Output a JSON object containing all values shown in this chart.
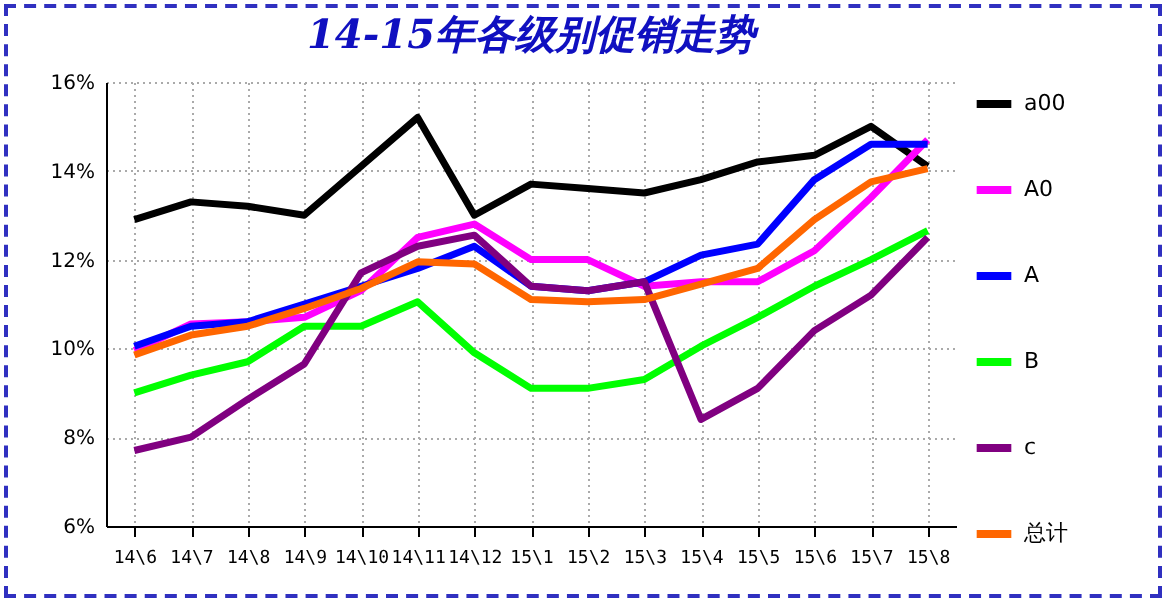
{
  "chart_data": {
    "type": "line",
    "title": "14-15年各级别促销走势",
    "categories": [
      "14\\6",
      "14\\7",
      "14\\8",
      "14\\9",
      "14\\10",
      "14\\11",
      "14\\12",
      "15\\1",
      "15\\2",
      "15\\3",
      "15\\4",
      "15\\5",
      "15\\6",
      "15\\7",
      "15\\8"
    ],
    "series": [
      {
        "name": "a00",
        "color": "#000000",
        "values": [
          12.9,
          13.3,
          13.2,
          13.0,
          14.1,
          15.2,
          13.0,
          13.7,
          13.6,
          13.5,
          13.8,
          14.2,
          14.35,
          15.0,
          14.1
        ]
      },
      {
        "name": "A0",
        "color": "#ff00ff",
        "values": [
          9.95,
          10.55,
          10.6,
          10.7,
          11.3,
          12.5,
          12.8,
          12.0,
          12.0,
          11.4,
          11.5,
          11.5,
          12.2,
          13.4,
          14.7
        ]
      },
      {
        "name": "A",
        "color": "#0000ff",
        "values": [
          10.05,
          10.5,
          10.6,
          11.0,
          11.4,
          11.8,
          12.3,
          11.4,
          11.3,
          11.5,
          12.1,
          12.35,
          13.8,
          14.6,
          14.6
        ]
      },
      {
        "name": "B",
        "color": "#00ff00",
        "values": [
          9.0,
          9.4,
          9.7,
          10.5,
          10.5,
          11.05,
          9.9,
          9.1,
          9.1,
          9.3,
          10.05,
          10.7,
          11.4,
          12.0,
          12.65
        ]
      },
      {
        "name": "c",
        "color": "#800080",
        "values": [
          7.7,
          8.0,
          8.85,
          9.65,
          11.7,
          12.3,
          12.55,
          11.4,
          11.3,
          11.5,
          8.4,
          9.1,
          10.4,
          11.2,
          12.5
        ]
      },
      {
        "name": "总计",
        "color": "#ff6600",
        "values": [
          9.85,
          10.3,
          10.5,
          10.9,
          11.35,
          11.95,
          11.9,
          11.1,
          11.05,
          11.1,
          11.45,
          11.8,
          12.9,
          13.75,
          14.05
        ]
      }
    ],
    "ylim": [
      6,
      16
    ],
    "yticks": [
      {
        "value": 6,
        "label": "6%"
      },
      {
        "value": 8,
        "label": "8%"
      },
      {
        "value": 10,
        "label": "10%"
      },
      {
        "value": 12,
        "label": "12%"
      },
      {
        "value": 14,
        "label": "14%"
      },
      {
        "value": 16,
        "label": "16%"
      }
    ],
    "grid": true,
    "legend": "right",
    "marker": "none",
    "line_style": "solid"
  }
}
